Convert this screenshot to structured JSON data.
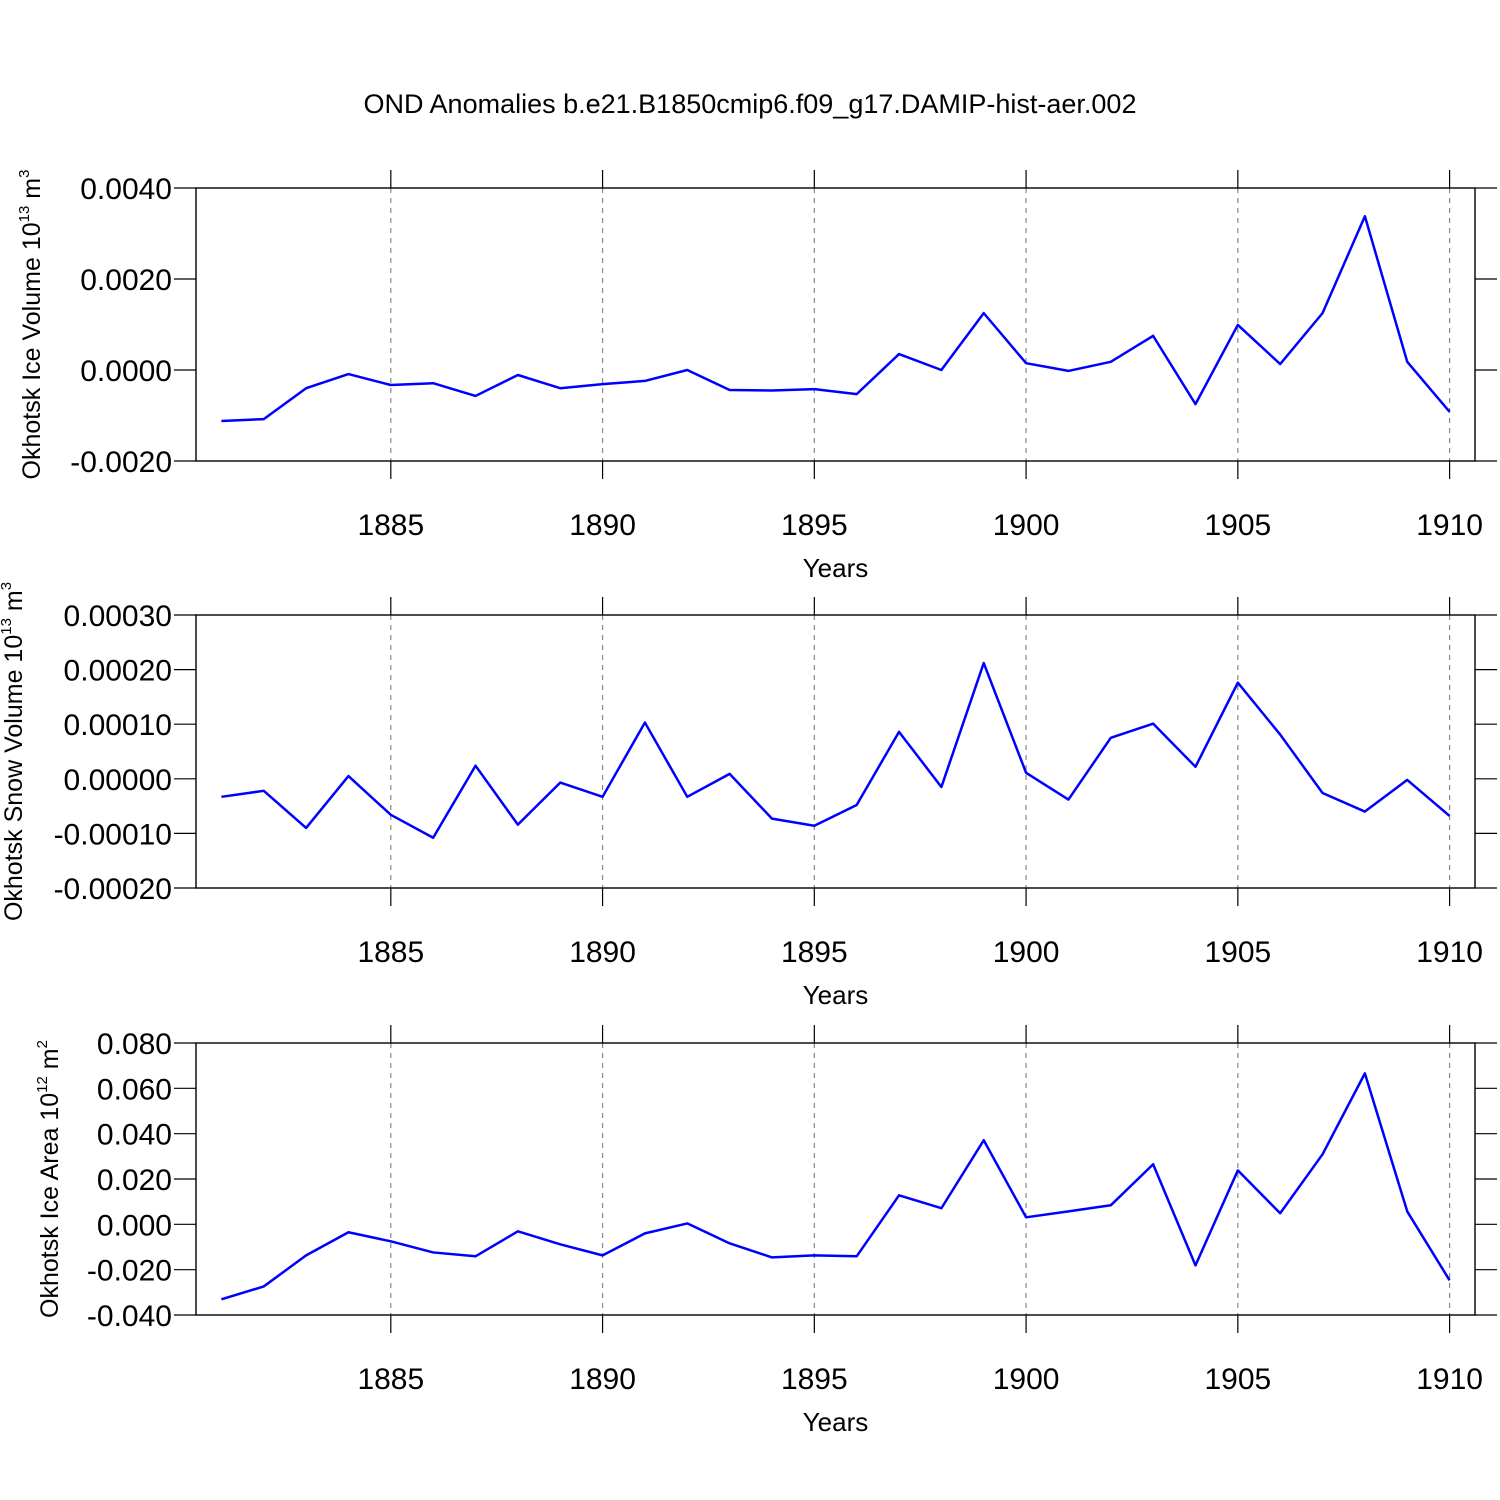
{
  "title": "OND Anomalies b.e21.B1850cmip6.f09_g17.DAMIP-hist-aer.002",
  "chart_data": [
    {
      "type": "line",
      "xlabel": "Years",
      "ylabel": [
        "Okhotsk Ice Volume 10",
        "13",
        " m",
        "3"
      ],
      "x": [
        1881,
        1882,
        1883,
        1884,
        1885,
        1886,
        1887,
        1888,
        1889,
        1890,
        1891,
        1892,
        1893,
        1894,
        1895,
        1896,
        1897,
        1898,
        1899,
        1900,
        1901,
        1902,
        1903,
        1904,
        1905,
        1906,
        1907,
        1908,
        1909,
        1910
      ],
      "series": [
        {
          "color": "#0000ff",
          "values": [
            -0.00112,
            -0.00108,
            -0.0004,
            -9e-05,
            -0.00033,
            -0.00029,
            -0.00057,
            -0.00011,
            -0.0004,
            -0.00031,
            -0.00024,
            0.0,
            -0.00044,
            -0.00045,
            -0.00042,
            -0.00053,
            0.00035,
            0.0,
            0.00125,
            0.00015,
            -2e-05,
            0.00018,
            0.00075,
            -0.00075,
            0.00099,
            0.00013,
            0.00125,
            0.00338,
            0.00018,
            -0.00092
          ]
        }
      ],
      "xlim": [
        1880.4,
        1910.6
      ],
      "xticks": [
        1885,
        1890,
        1895,
        1900,
        1905,
        1910
      ],
      "ylim": [
        -0.002,
        0.004
      ],
      "yticks": [
        {
          "value": -0.002,
          "label": "-0.0020"
        },
        {
          "value": 0,
          "label": "0.0000"
        },
        {
          "value": 0.002,
          "label": "0.0020"
        },
        {
          "value": 0.004,
          "label": "0.0040"
        }
      ],
      "xgrid": true
    },
    {
      "type": "line",
      "xlabel": "Years",
      "ylabel": [
        "Okhotsk Snow Volume 10",
        "13",
        " m",
        "3"
      ],
      "x": [
        1881,
        1882,
        1883,
        1884,
        1885,
        1886,
        1887,
        1888,
        1889,
        1890,
        1891,
        1892,
        1893,
        1894,
        1895,
        1896,
        1897,
        1898,
        1899,
        1900,
        1901,
        1902,
        1903,
        1904,
        1905,
        1906,
        1907,
        1908,
        1909,
        1910
      ],
      "series": [
        {
          "color": "#0000ff",
          "values": [
            -3.3e-05,
            -2.2e-05,
            -9e-05,
            5e-06,
            -6.6e-05,
            -0.000108,
            2.4e-05,
            -8.4e-05,
            -7e-06,
            -3.3e-05,
            0.000103,
            -3.3e-05,
            9e-06,
            -7.3e-05,
            -8.6e-05,
            -4.8e-05,
            8.6e-05,
            -1.5e-05,
            0.000212,
            1.1e-05,
            -3.8e-05,
            7.5e-05,
            0.000101,
            2.2e-05,
            0.000176,
            8.1e-05,
            -2.6e-05,
            -6e-05,
            -2e-06,
            -6.8e-05
          ]
        }
      ],
      "xlim": [
        1880.4,
        1910.6
      ],
      "xticks": [
        1885,
        1890,
        1895,
        1900,
        1905,
        1910
      ],
      "ylim": [
        -0.0002,
        0.0003
      ],
      "yticks": [
        {
          "value": -0.0002,
          "label": "-0.00020"
        },
        {
          "value": -0.0001,
          "label": "-0.00010"
        },
        {
          "value": 0,
          "label": "0.00000"
        },
        {
          "value": 0.0001,
          "label": "0.00010"
        },
        {
          "value": 0.0002,
          "label": "0.00020"
        },
        {
          "value": 0.0003,
          "label": "0.00030"
        }
      ],
      "xgrid": true
    },
    {
      "type": "line",
      "xlabel": "Years",
      "ylabel": [
        "Okhotsk Ice Area 10",
        "12",
        " m",
        "2"
      ],
      "x": [
        1881,
        1882,
        1883,
        1884,
        1885,
        1886,
        1887,
        1888,
        1889,
        1890,
        1891,
        1892,
        1893,
        1894,
        1895,
        1896,
        1897,
        1898,
        1899,
        1900,
        1901,
        1902,
        1903,
        1904,
        1905,
        1906,
        1907,
        1908,
        1909,
        1910
      ],
      "series": [
        {
          "color": "#0000ff",
          "values": [
            -0.0331,
            -0.0274,
            -0.0137,
            -0.0035,
            -0.0075,
            -0.0124,
            -0.0141,
            -0.0031,
            -0.0088,
            -0.0137,
            -0.004,
            0.0004,
            -0.0084,
            -0.0146,
            -0.0137,
            -0.0141,
            0.0128,
            0.0071,
            0.0371,
            0.0031,
            0.0057,
            0.0084,
            0.0265,
            -0.0181,
            0.0238,
            0.0049,
            0.0309,
            0.0666,
            0.0057,
            -0.0247
          ]
        }
      ],
      "xlim": [
        1880.4,
        1910.6
      ],
      "xticks": [
        1885,
        1890,
        1895,
        1900,
        1905,
        1910
      ],
      "ylim": [
        -0.04,
        0.08
      ],
      "yticks": [
        {
          "value": -0.04,
          "label": "-0.040"
        },
        {
          "value": -0.02,
          "label": "-0.020"
        },
        {
          "value": 0,
          "label": "0.000"
        },
        {
          "value": 0.02,
          "label": "0.020"
        },
        {
          "value": 0.04,
          "label": "0.040"
        },
        {
          "value": 0.06,
          "label": "0.060"
        },
        {
          "value": 0.08,
          "label": "0.080"
        }
      ],
      "xgrid": true
    }
  ]
}
